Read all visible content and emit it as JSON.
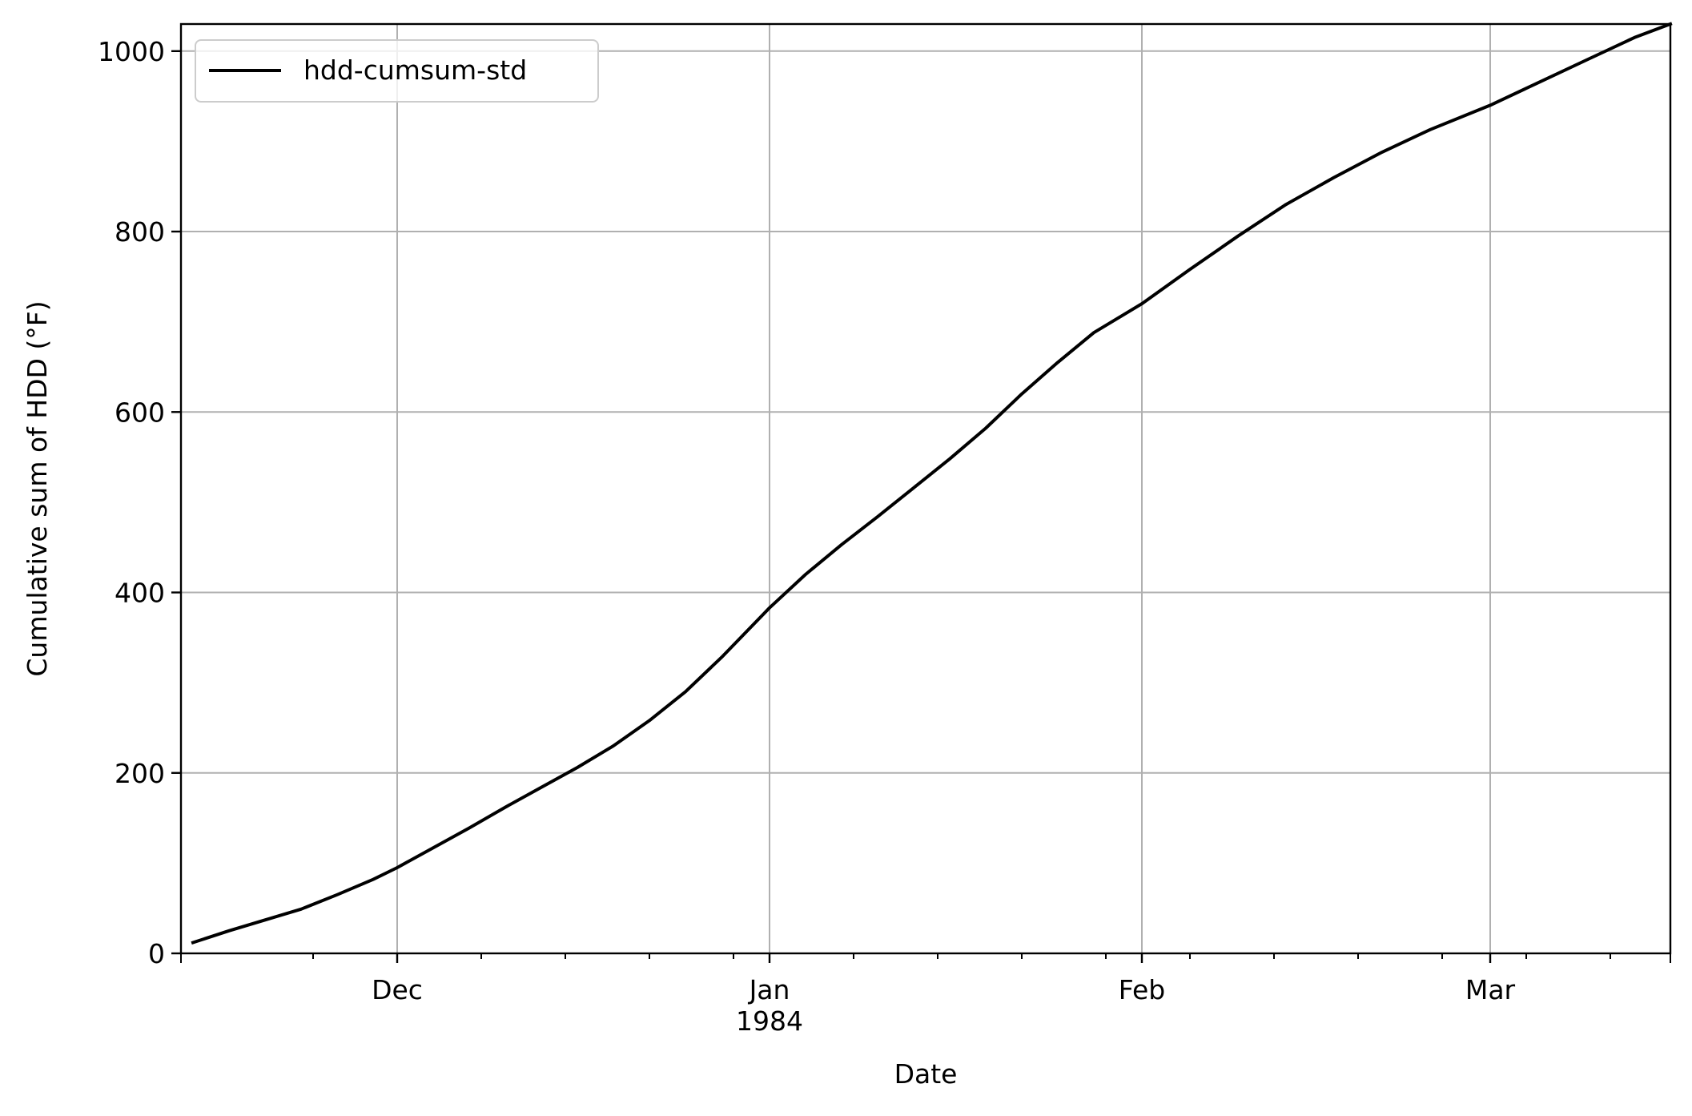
{
  "chart_data": {
    "type": "line",
    "xlabel": "Date",
    "ylabel": "Cumulative sum of HDD (°F)",
    "xlim": [
      "1983-11-13",
      "1984-03-16"
    ],
    "ylim": [
      0,
      1030
    ],
    "grid": true,
    "legend_position": "top-left",
    "x_ticks": [
      {
        "date": "1983-12-01",
        "label": "Dec",
        "sublabel": ""
      },
      {
        "date": "1984-01-01",
        "label": "Jan",
        "sublabel": "1984"
      },
      {
        "date": "1984-02-01",
        "label": "Feb",
        "sublabel": ""
      },
      {
        "date": "1984-03-01",
        "label": "Mar",
        "sublabel": ""
      }
    ],
    "x_minor_ticks": [
      "1983-11-24",
      "1983-12-08",
      "1983-12-15",
      "1983-12-22",
      "1983-12-29",
      "1984-01-08",
      "1984-01-15",
      "1984-01-22",
      "1984-01-29",
      "1984-02-05",
      "1984-02-12",
      "1984-02-19",
      "1984-02-26",
      "1984-03-04",
      "1984-03-11"
    ],
    "y_ticks": [
      0,
      200,
      400,
      600,
      800,
      1000
    ],
    "series": [
      {
        "name": "hdd-cumsum-std",
        "color": "#000000",
        "x": [
          "1983-11-14",
          "1983-11-17",
          "1983-11-20",
          "1983-11-23",
          "1983-11-26",
          "1983-11-29",
          "1983-12-01",
          "1983-12-04",
          "1983-12-07",
          "1983-12-10",
          "1983-12-13",
          "1983-12-16",
          "1983-12-19",
          "1983-12-22",
          "1983-12-25",
          "1983-12-28",
          "1984-01-01",
          "1984-01-04",
          "1984-01-07",
          "1984-01-10",
          "1984-01-13",
          "1984-01-16",
          "1984-01-19",
          "1984-01-22",
          "1984-01-25",
          "1984-01-28",
          "1984-02-01",
          "1984-02-05",
          "1984-02-09",
          "1984-02-13",
          "1984-02-17",
          "1984-02-21",
          "1984-02-25",
          "1984-03-01",
          "1984-03-05",
          "1984-03-09",
          "1984-03-13",
          "1984-03-16"
        ],
        "values": [
          12,
          25,
          37,
          49,
          65,
          82,
          95,
          117,
          139,
          162,
          184,
          206,
          230,
          258,
          290,
          328,
          383,
          420,
          453,
          484,
          516,
          548,
          582,
          620,
          655,
          688,
          720,
          758,
          795,
          830,
          860,
          888,
          913,
          940,
          965,
          990,
          1015,
          1030
        ]
      }
    ]
  }
}
